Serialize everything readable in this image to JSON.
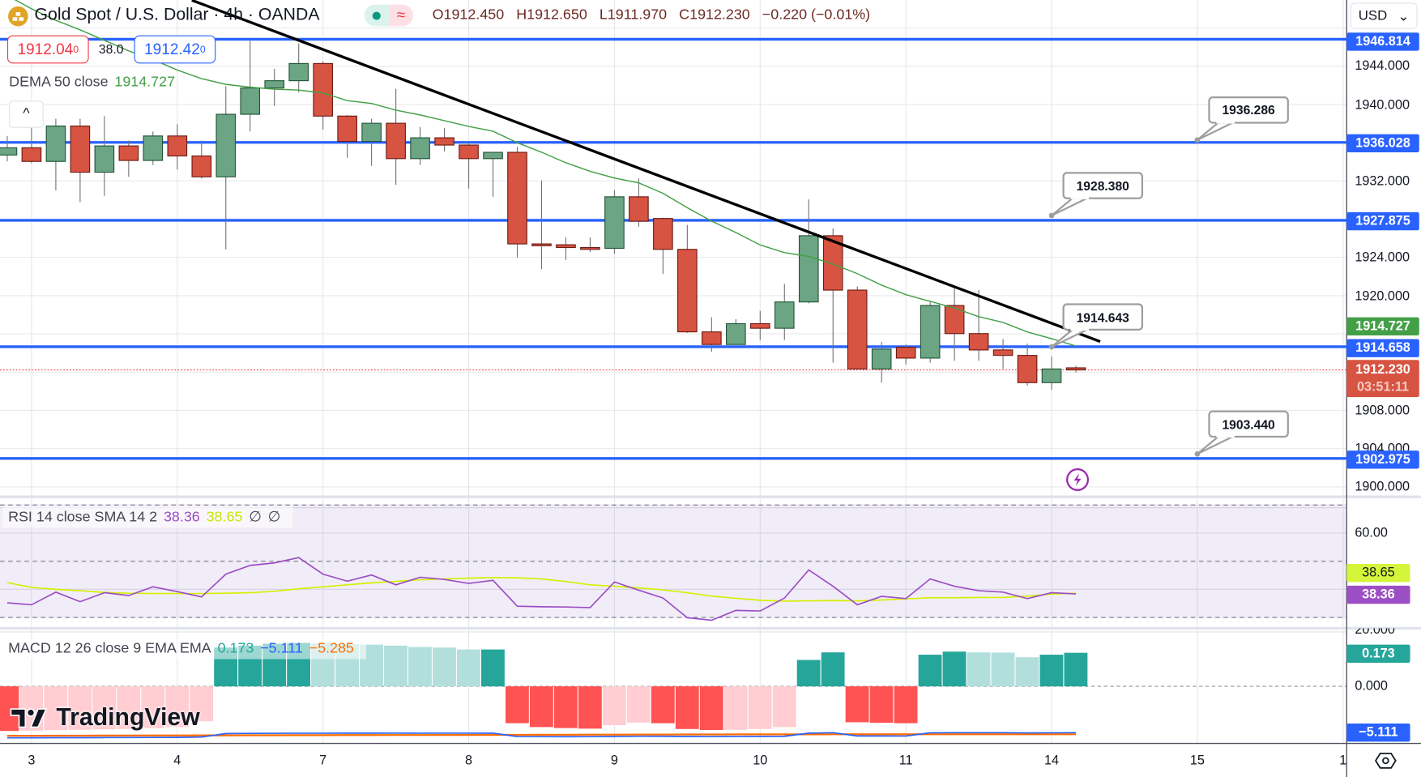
{
  "header": {
    "symbol_title": "Gold Spot / U.S. Dollar · 4h · OANDA",
    "status_dot_icon": "market-open-dot",
    "status_wave_icon": "approx-icon",
    "status_wave_glyph": "≈",
    "ohlc": {
      "o_label": "O",
      "o": "1912.450",
      "h_label": "H",
      "h": "1912.650",
      "l_label": "L",
      "l": "1911.970",
      "c_label": "C",
      "c": "1912.230",
      "change": "−0.220 (−0.01%)"
    },
    "sell": {
      "main": "1912.04",
      "pip": "0"
    },
    "spread": "38.0",
    "buy": {
      "main": "1912.42",
      "pip": "0"
    },
    "currency": "USD",
    "currency_chevron": "⌄"
  },
  "indicators": {
    "dema": {
      "label": "DEMA 50 close",
      "value": "1914.727"
    },
    "collapse_glyph": "^",
    "rsi": {
      "label": "RSI 14 close SMA 14 2",
      "rsi_value": "38.36",
      "sma_value": "38.65",
      "extra1": "∅",
      "extra2": "∅"
    },
    "macd": {
      "label": "MACD 12 26 close 9 EMA EMA",
      "hist_value": "0.173",
      "macd_value": "−5.111",
      "signal_value": "−5.285"
    }
  },
  "branding": {
    "logo_text": "TradingView"
  },
  "price_axis": {
    "ticks": [
      "1944.000",
      "1940.000",
      "1932.000",
      "1924.000",
      "1920.000",
      "1908.000",
      "1904.000",
      "1900.000"
    ],
    "rsi_ticks": [
      "60.00",
      "20.000"
    ],
    "macd_ticks": [
      "0.000"
    ],
    "labels": {
      "h1": "1946.814",
      "h2": "1936.028",
      "h3": "1927.875",
      "dema": "1914.727",
      "h4": "1914.658",
      "last": "1912.230",
      "countdown": "03:51:11",
      "h5": "1902.975",
      "rsi_sma": "38.65",
      "rsi": "38.36",
      "hist": "0.173",
      "macd": "−5.111"
    }
  },
  "time_axis": {
    "labels": [
      {
        "text": "3",
        "bar": 1
      },
      {
        "text": "4",
        "bar": 7
      },
      {
        "text": "7",
        "bar": 13
      },
      {
        "text": "8",
        "bar": 19
      },
      {
        "text": "9",
        "bar": 25
      },
      {
        "text": "10",
        "bar": 31
      },
      {
        "text": "11",
        "bar": 37
      },
      {
        "text": "14",
        "bar": 43
      },
      {
        "text": "15",
        "bar": 49
      },
      {
        "text": "1",
        "bar": 55
      }
    ]
  },
  "colors": {
    "up": "#6ba583",
    "up_border": "#225437",
    "down": "#d75442",
    "down_border": "#6b1a12",
    "hline": "#2962ff",
    "dema": "#43a047",
    "trendline": "#000000",
    "rsi": "#9c4fc4",
    "rsi_sma": "#d4f000",
    "hist_up_strong": "#26a69a",
    "hist_up_weak": "#b2dfdb",
    "hist_down_strong": "#ff5252",
    "hist_down_weak": "#ffcdd2",
    "macd": "#2962ff",
    "signal": "#ff6d00",
    "last_price": "#f23645"
  },
  "chart_data": {
    "type": "candlestick",
    "symbol": "Gold Spot / U.S. Dollar",
    "interval": "4h",
    "ylim": [
      1900,
      1950
    ],
    "candles": [
      [
        1934.71,
        1936.7,
        1934.04,
        1935.47
      ],
      [
        1935.47,
        1938.31,
        1933.85,
        1934.04
      ],
      [
        1934.04,
        1938.5,
        1931.01,
        1937.74
      ],
      [
        1937.74,
        1938.5,
        1929.78,
        1932.91
      ],
      [
        1932.91,
        1938.78,
        1930.44,
        1935.66
      ],
      [
        1935.66,
        1936.22,
        1932.43,
        1934.14
      ],
      [
        1934.14,
        1937.17,
        1933.66,
        1936.7
      ],
      [
        1936.7,
        1937.93,
        1933.19,
        1934.61
      ],
      [
        1934.61,
        1936.22,
        1932.24,
        1932.43
      ],
      [
        1932.43,
        1941.91,
        1924.84,
        1938.97
      ],
      [
        1938.97,
        1946.66,
        1937.17,
        1941.72
      ],
      [
        1941.72,
        1943.72,
        1939.83,
        1942.48
      ],
      [
        1942.48,
        1946.37,
        1941.25,
        1944.28
      ],
      [
        1944.28,
        1944.5,
        1937.36,
        1938.78
      ],
      [
        1938.78,
        1938.9,
        1934.42,
        1936.13
      ],
      [
        1936.13,
        1938.5,
        1933.57,
        1938.03
      ],
      [
        1938.03,
        1941.63,
        1931.58,
        1934.33
      ],
      [
        1934.33,
        1937.65,
        1933.66,
        1936.51
      ],
      [
        1936.51,
        1937.55,
        1935.09,
        1935.75
      ],
      [
        1935.75,
        1936.03,
        1931.2,
        1934.33
      ],
      [
        1934.33,
        1934.99,
        1930.34,
        1934.99
      ],
      [
        1934.99,
        1935.56,
        1923.99,
        1925.41
      ],
      [
        1925.41,
        1932.05,
        1922.76,
        1925.3
      ],
      [
        1925.32,
        1926.08,
        1923.71,
        1925.03
      ],
      [
        1925.03,
        1926.08,
        1924.56,
        1924.95
      ],
      [
        1924.95,
        1931.01,
        1924.37,
        1930.34
      ],
      [
        1930.34,
        1932.24,
        1927.21,
        1927.78
      ],
      [
        1928.07,
        1928.16,
        1922.28,
        1924.84
      ],
      [
        1924.84,
        1927.4,
        1916.1,
        1916.21
      ],
      [
        1916.21,
        1917.73,
        1914.13,
        1914.89
      ],
      [
        1914.89,
        1917.54,
        1914.89,
        1917.07
      ],
      [
        1917.07,
        1918.4,
        1915.36,
        1916.59
      ],
      [
        1916.59,
        1921.24,
        1915.36,
        1919.34
      ],
      [
        1919.34,
        1930.06,
        1919.2,
        1926.27
      ],
      [
        1926.27,
        1927.03,
        1912.99,
        1920.58
      ],
      [
        1920.58,
        1920.96,
        1912.33,
        1912.33
      ],
      [
        1912.33,
        1915.17,
        1910.9,
        1914.41
      ],
      [
        1914.6,
        1914.89,
        1912.8,
        1913.47
      ],
      [
        1913.47,
        1919.44,
        1912.99,
        1918.97
      ],
      [
        1918.97,
        1920.86,
        1913.18,
        1916.03
      ],
      [
        1916.03,
        1920.58,
        1913.18,
        1914.32
      ],
      [
        1914.32,
        1915.46,
        1912.33,
        1913.75
      ],
      [
        1913.75,
        1914.98,
        1910.6,
        1910.9
      ],
      [
        1910.9,
        1913.65,
        1910.15,
        1912.33
      ],
      [
        1912.45,
        1912.65,
        1911.97,
        1912.23
      ]
    ],
    "dema": [
      1951.4,
      1950.0,
      1948.8,
      1947.8,
      1946.7,
      1945.6,
      1944.7,
      1943.6,
      1942.7,
      1942.1,
      1941.8,
      1941.6,
      1941.5,
      1941.2,
      1940.4,
      1940.1,
      1939.4,
      1938.9,
      1938.3,
      1937.7,
      1937.2,
      1936.0,
      1935.0,
      1933.9,
      1933.0,
      1932.3,
      1931.8,
      1930.7,
      1929.2,
      1927.8,
      1926.6,
      1925.3,
      1924.5,
      1924.1,
      1923.3,
      1922.3,
      1921.1,
      1920.1,
      1919.4,
      1918.7,
      1917.8,
      1917.2,
      1916.2,
      1915.5,
      1914.727
    ],
    "horizontal_lines": [
      1946.814,
      1936.028,
      1927.875,
      1914.658,
      1902.975
    ],
    "trendline": {
      "from": {
        "bar": 7.6,
        "price": 1950.9
      },
      "to": {
        "bar": 45,
        "price": 1915.2
      }
    },
    "last_price": 1912.23,
    "callouts": [
      {
        "text": "1936.286",
        "bar": 49,
        "price": 1936.286
      },
      {
        "text": "1928.380",
        "bar": 43,
        "price": 1928.38
      },
      {
        "text": "1914.643",
        "bar": 43,
        "price": 1914.643
      },
      {
        "text": "1903.440",
        "bar": 49,
        "price": 1903.44
      }
    ],
    "rsi": {
      "levels": [
        70,
        50,
        30
      ],
      "ylim": [
        20,
        75
      ],
      "values": [
        35.2,
        34.5,
        39.0,
        35.6,
        38.8,
        37.8,
        40.9,
        39.2,
        37.3,
        45.4,
        48.5,
        49.4,
        51.3,
        45.4,
        42.9,
        45.1,
        41.6,
        44.3,
        43.5,
        42.1,
        43.2,
        34.0,
        33.8,
        33.7,
        33.5,
        42.6,
        39.7,
        36.9,
        29.9,
        29.0,
        32.5,
        32.3,
        36.9,
        46.9,
        41.1,
        34.5,
        37.5,
        36.7,
        43.7,
        41.1,
        39.5,
        39.0,
        36.7,
        38.8,
        38.36
      ],
      "sma": [
        42.4,
        40.7,
        40.0,
        39.5,
        38.9,
        38.6,
        38.5,
        38.5,
        38.5,
        38.6,
        38.8,
        39.3,
        40.2,
        40.9,
        41.6,
        42.3,
        42.8,
        43.4,
        43.7,
        44.0,
        44.2,
        44.1,
        43.7,
        42.8,
        41.6,
        41.1,
        40.5,
        39.8,
        38.8,
        37.6,
        36.8,
        36.1,
        35.8,
        35.9,
        36.0,
        35.9,
        36.2,
        36.6,
        37.0,
        37.0,
        37.1,
        37.1,
        37.6,
        38.3,
        38.65
      ]
    },
    "macd": {
      "histogram": [
        -0.23,
        -0.228,
        -0.226,
        -0.224,
        -0.222,
        -0.22,
        -0.215,
        -0.21,
        -0.18,
        0.2,
        0.21,
        0.22,
        0.224,
        0.222,
        0.218,
        0.215,
        0.21,
        0.203,
        0.2,
        0.19,
        0.19,
        -0.19,
        -0.21,
        -0.215,
        -0.218,
        -0.2,
        -0.187,
        -0.19,
        -0.22,
        -0.225,
        -0.224,
        -0.22,
        -0.21,
        0.136,
        0.175,
        -0.185,
        -0.188,
        -0.19,
        0.163,
        0.179,
        0.175,
        0.174,
        0.15,
        0.163,
        0.173
      ],
      "signal": [
        -5.45,
        -5.45,
        -5.44,
        -5.44,
        -5.43,
        -5.43,
        -5.42,
        -5.42,
        -5.41,
        -5.41,
        -5.4,
        -5.4,
        -5.39,
        -5.39,
        -5.38,
        -5.38,
        -5.37,
        -5.37,
        -5.36,
        -5.36,
        -5.35,
        -5.35,
        -5.34,
        -5.34,
        -5.33,
        -5.33,
        -5.32,
        -5.32,
        -5.31,
        -5.31,
        -5.3,
        -5.3,
        -5.3,
        -5.3,
        -5.29,
        -5.29,
        -5.29,
        -5.29,
        -5.29,
        -5.29,
        -5.29,
        -5.29,
        -5.285,
        -5.285,
        -5.285
      ]
    }
  }
}
